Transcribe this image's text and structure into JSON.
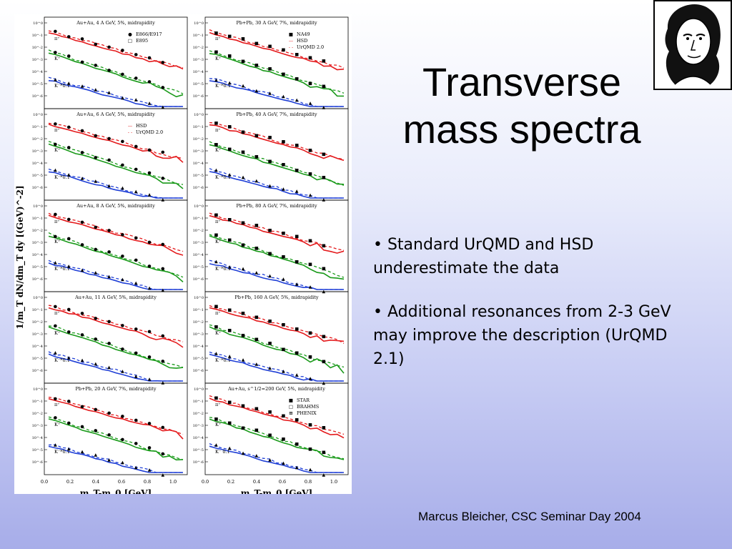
{
  "slide": {
    "title": "Transverse mass spectra",
    "bullets": [
      "• Standard UrQMD and HSD underestimate the data",
      "• Additional resonances from 2-3 GeV may improve the description (UrQMD 2.1)"
    ],
    "footer": "Marcus Bleicher, CSC Seminar Day 2004"
  },
  "portrait": {
    "icon": "goethe-portrait-icon"
  },
  "figure": {
    "y_axis_label": "1/m_T dN/dm_T dy [(GeV)^-2]",
    "x_axis_label": "m_T-m_0 [GeV]",
    "x_ticks": [
      "0.0",
      "0.2",
      "0.4",
      "0.6",
      "0.8",
      "1.0"
    ],
    "y_ticks": [
      "10^0",
      "10^-1",
      "10^-2",
      "10^-3",
      "10^-4",
      "10^-5",
      "10^-6"
    ],
    "colors": {
      "pi": "#e41a1c",
      "K_plus": "#1a9a1a",
      "K_minus": "#1f3fd6"
    },
    "particle_labels": {
      "pi": "π⁺",
      "kp": "K⁺",
      "km": "K⁻*0.1",
      "km_central": "K⁻ 0.1"
    },
    "panels": [
      {
        "title": "Au+Au, 4 A GeV, 5%, midrapidity",
        "legend": [
          {
            "marker": "●",
            "text": "E866/E917"
          },
          {
            "marker": "□",
            "text": "E895"
          }
        ]
      },
      {
        "title": "Pb+Pb, 30 A GeV, 7%, midrapidity",
        "legend": [
          {
            "marker": "■",
            "text": "NA49"
          },
          {
            "marker": "—",
            "text": "HSD"
          },
          {
            "marker": "- -",
            "text": "UrQMD 2.0"
          }
        ]
      },
      {
        "title": "Au+Au, 6 A GeV, 5%, midrapidity",
        "legend": [
          {
            "marker": "—",
            "text": "HSD"
          },
          {
            "marker": "- -",
            "text": "UrQMD 2.0"
          }
        ]
      },
      {
        "title": "Pb+Pb, 40 A GeV, 7%, midrapidity",
        "legend": []
      },
      {
        "title": "Au+Au, 8 A GeV, 5%, midrapidity",
        "legend": []
      },
      {
        "title": "Pb+Pb, 80 A GeV, 7%, midrapidity",
        "legend": []
      },
      {
        "title": "Au+Au, 11 A GeV, 5%, midrapidity",
        "legend": []
      },
      {
        "title": "Pb+Pb, 160 A GeV, 5%, midrapidity",
        "legend": []
      },
      {
        "title": "Pb+Pb, 20 A GeV, 7%, midrapidity",
        "legend": []
      },
      {
        "title": "Au+Au, s^1/2=200 GeV, 5%, midrapidity",
        "legend": [
          {
            "marker": "■",
            "text": "STAR"
          },
          {
            "marker": "□",
            "text": "BRAHMS"
          },
          {
            "marker": "⊞",
            "text": "PHENIX"
          }
        ]
      }
    ]
  }
}
